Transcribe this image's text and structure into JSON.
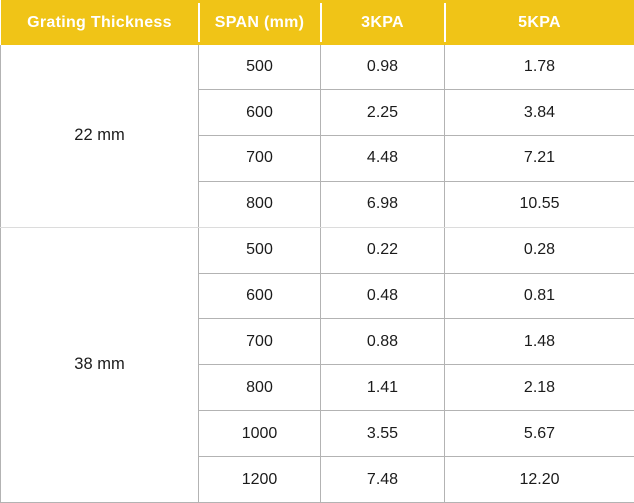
{
  "table": {
    "headers": [
      "Grating Thickness",
      "SPAN (mm)",
      "3KPA",
      "5KPA"
    ],
    "groups": [
      {
        "thickness": "22 mm",
        "rows": [
          {
            "span": "500",
            "kpa3": "0.98",
            "kpa5": "1.78"
          },
          {
            "span": "600",
            "kpa3": "2.25",
            "kpa5": "3.84"
          },
          {
            "span": "700",
            "kpa3": "4.48",
            "kpa5": "7.21"
          },
          {
            "span": "800",
            "kpa3": "6.98",
            "kpa5": "10.55"
          }
        ]
      },
      {
        "thickness": "38 mm",
        "rows": [
          {
            "span": "500",
            "kpa3": "0.22",
            "kpa5": "0.28"
          },
          {
            "span": "600",
            "kpa3": "0.48",
            "kpa5": "0.81"
          },
          {
            "span": "700",
            "kpa3": "0.88",
            "kpa5": "1.48"
          },
          {
            "span": "800",
            "kpa3": "1.41",
            "kpa5": "2.18"
          },
          {
            "span": "1000",
            "kpa3": "3.55",
            "kpa5": "5.67"
          },
          {
            "span": "1200",
            "kpa3": "7.48",
            "kpa5": "12.20"
          }
        ]
      }
    ]
  },
  "colors": {
    "header_bg": "#F0C417",
    "header_text": "#FFFFFF",
    "grid": "#B3B3B3",
    "group_divider": "#DCDCDC",
    "body_text": "#1B1B1B"
  },
  "chart_data": {
    "type": "table",
    "columns": [
      "Grating Thickness",
      "SPAN (mm)",
      "3KPA",
      "5KPA"
    ],
    "rows": [
      [
        "22 mm",
        500,
        0.98,
        1.78
      ],
      [
        "22 mm",
        600,
        2.25,
        3.84
      ],
      [
        "22 mm",
        700,
        4.48,
        7.21
      ],
      [
        "22 mm",
        800,
        6.98,
        10.55
      ],
      [
        "38 mm",
        500,
        0.22,
        0.28
      ],
      [
        "38 mm",
        600,
        0.48,
        0.81
      ],
      [
        "38 mm",
        700,
        0.88,
        1.48
      ],
      [
        "38 mm",
        800,
        1.41,
        2.18
      ],
      [
        "38 mm",
        1000,
        3.55,
        5.67
      ],
      [
        "38 mm",
        1200,
        7.48,
        12.2
      ]
    ]
  }
}
